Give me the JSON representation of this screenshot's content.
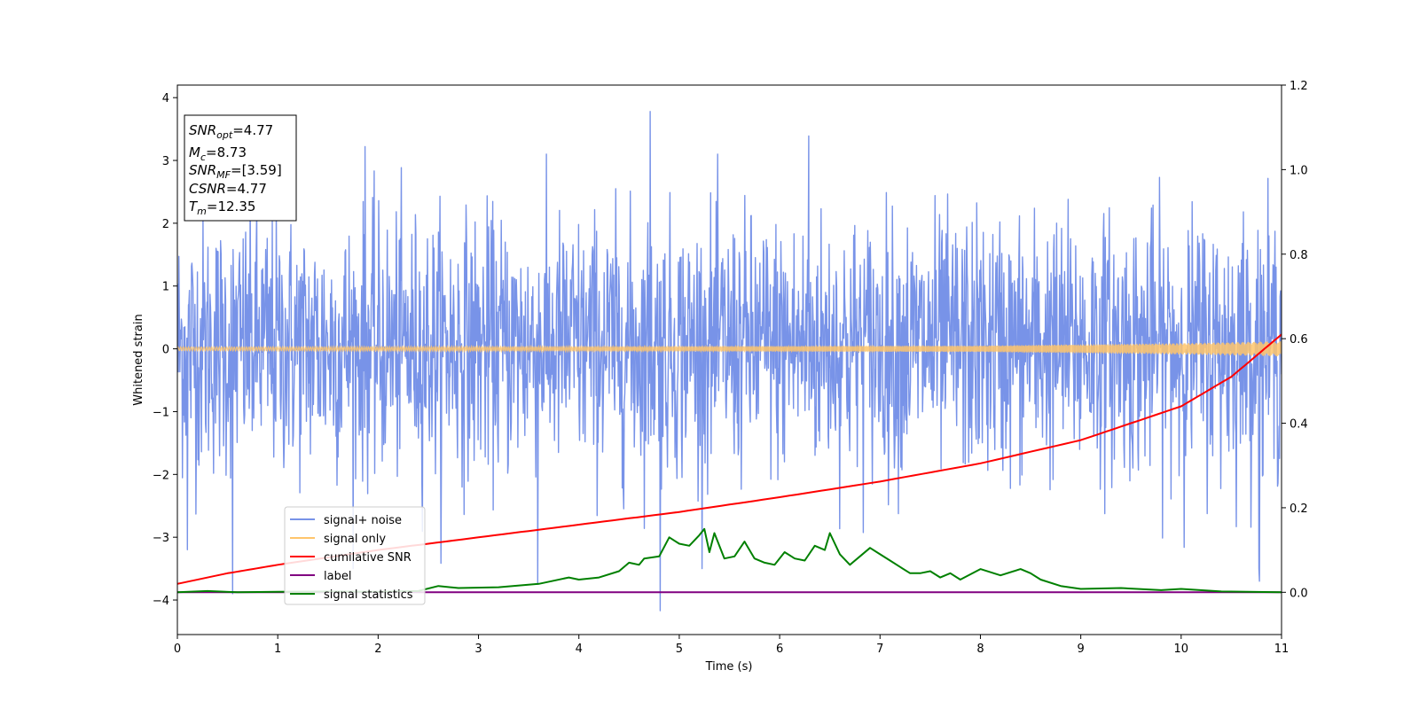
{
  "chart_data": {
    "type": "line",
    "x_axis": {
      "label": "Time (s)",
      "range": [
        0,
        11
      ],
      "ticks": [
        0,
        1,
        2,
        3,
        4,
        5,
        6,
        7,
        8,
        9,
        10,
        11
      ],
      "tick_labels": [
        "0",
        "1",
        "2",
        "3",
        "4",
        "5",
        "6",
        "7",
        "8",
        "9",
        "10",
        "11"
      ]
    },
    "y_axis_left": {
      "label": "Whitened strain",
      "range": [
        -4.55,
        4.2
      ],
      "ticks": [
        -4,
        -3,
        -2,
        -1,
        0,
        1,
        2,
        3,
        4
      ],
      "tick_labels": [
        "−4",
        "−3",
        "−2",
        "−1",
        "0",
        "1",
        "2",
        "3",
        "4"
      ]
    },
    "y_axis_right": {
      "label": "",
      "range": [
        -0.1,
        1.2
      ],
      "ticks": [
        0.0,
        0.2,
        0.4,
        0.6,
        0.8,
        1.0,
        1.2
      ],
      "tick_labels": [
        "0.0",
        "0.2",
        "0.4",
        "0.6",
        "0.8",
        "1.0",
        "1.2"
      ]
    },
    "grid": false,
    "legend_position": "lower-left",
    "info_box": {
      "position": "top-left",
      "entries": [
        {
          "symbol": "SNR",
          "subscript": "opt",
          "value": "=4.77"
        },
        {
          "symbol": "M",
          "subscript": "c",
          "value": "=8.73"
        },
        {
          "symbol": "SNR",
          "subscript": "MF",
          "value": "=[3.59]"
        },
        {
          "symbol": "CSNR",
          "subscript": "",
          "value": "=4.77"
        },
        {
          "symbol": "T",
          "subscript": "m",
          "value": "=12.35"
        }
      ]
    },
    "series": [
      {
        "name": "signal+ noise",
        "axis": "left",
        "color": "#7893e8",
        "kind": "noise",
        "sample_count": 2200,
        "typical_range": [
          -2.3,
          2.4
        ],
        "extremes": [
          {
            "x": 4.71,
            "y": 3.78
          },
          {
            "x": 4.81,
            "y": -4.17
          },
          {
            "x": 0.55,
            "y": -3.9
          },
          {
            "x": 6.29,
            "y": 3.39
          },
          {
            "x": 1.87,
            "y": 3.22
          },
          {
            "x": 3.59,
            "y": -3.75
          },
          {
            "x": 10.78,
            "y": -3.7
          },
          {
            "x": 0.1,
            "y": -3.2
          }
        ]
      },
      {
        "name": "signal only",
        "axis": "left",
        "color": "#ffc56b",
        "kind": "chirp",
        "amplitude_points": [
          [
            0,
            0.03
          ],
          [
            5,
            0.04
          ],
          [
            8,
            0.05
          ],
          [
            10,
            0.09
          ],
          [
            11,
            0.12
          ]
        ]
      },
      {
        "name": "cumilative SNR",
        "axis": "right",
        "color": "#ff0000",
        "x": [
          0,
          0.5,
          1,
          2,
          3,
          4,
          5,
          6,
          7,
          8,
          9,
          10,
          10.5,
          11
        ],
        "y": [
          0.02,
          0.045,
          0.065,
          0.1,
          0.13,
          0.16,
          0.19,
          0.225,
          0.262,
          0.305,
          0.36,
          0.44,
          0.51,
          0.61
        ]
      },
      {
        "name": "label",
        "axis": "right",
        "color": "#800080",
        "x": [
          0,
          11
        ],
        "y": [
          0,
          0
        ]
      },
      {
        "name": "signal statistics",
        "axis": "right",
        "color": "#008000",
        "x": [
          0,
          0.3,
          0.6,
          1,
          1.5,
          2,
          2.4,
          2.6,
          2.8,
          3.2,
          3.6,
          3.9,
          4.0,
          4.2,
          4.4,
          4.5,
          4.6,
          4.65,
          4.8,
          4.9,
          5.0,
          5.1,
          5.2,
          5.25,
          5.3,
          5.35,
          5.45,
          5.55,
          5.65,
          5.75,
          5.85,
          5.95,
          6.05,
          6.15,
          6.25,
          6.35,
          6.45,
          6.5,
          6.6,
          6.7,
          6.8,
          6.9,
          7.0,
          7.1,
          7.2,
          7.3,
          7.4,
          7.5,
          7.6,
          7.7,
          7.8,
          8.0,
          8.2,
          8.4,
          8.5,
          8.6,
          8.8,
          9.0,
          9.4,
          9.8,
          10.0,
          10.4,
          11
        ],
        "y": [
          0.0,
          0.003,
          0.0,
          0.001,
          0.002,
          0.001,
          0.003,
          0.015,
          0.01,
          0.012,
          0.02,
          0.035,
          0.03,
          0.035,
          0.05,
          0.07,
          0.065,
          0.08,
          0.085,
          0.13,
          0.115,
          0.11,
          0.135,
          0.15,
          0.095,
          0.14,
          0.08,
          0.085,
          0.12,
          0.08,
          0.07,
          0.065,
          0.095,
          0.08,
          0.075,
          0.11,
          0.1,
          0.14,
          0.09,
          0.065,
          0.085,
          0.105,
          0.09,
          0.075,
          0.06,
          0.045,
          0.045,
          0.05,
          0.035,
          0.045,
          0.03,
          0.055,
          0.04,
          0.055,
          0.045,
          0.03,
          0.015,
          0.008,
          0.01,
          0.005,
          0.008,
          0.002,
          0.0
        ]
      }
    ]
  }
}
